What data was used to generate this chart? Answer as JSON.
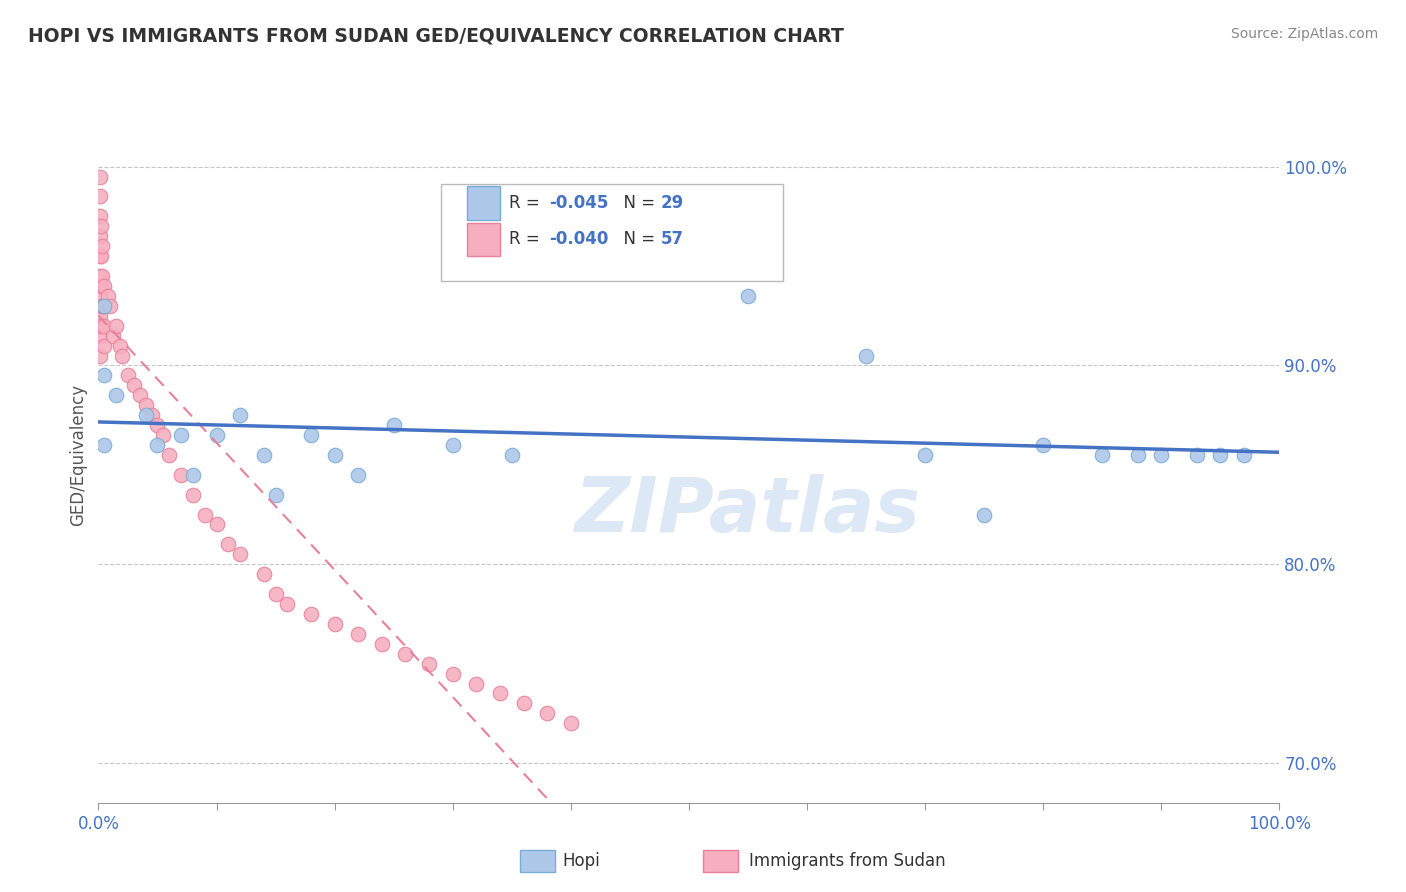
{
  "title": "HOPI VS IMMIGRANTS FROM SUDAN GED/EQUIVALENCY CORRELATION CHART",
  "source": "Source: ZipAtlas.com",
  "ylabel": "GED/Equivalency",
  "legend_R1": "-0.045",
  "legend_N1": "29",
  "legend_R2": "-0.040",
  "legend_N2": "57",
  "color_hopi": "#adc8e8",
  "color_hopi_edge": "#7aadd4",
  "color_sudan": "#f5afc0",
  "color_sudan_edge": "#e8809a",
  "color_hopi_trend": "#4472c4",
  "color_sudan_trend": "#e8809a",
  "background_color": "#ffffff",
  "watermark_color": "#dce8f5",
  "hopi_x": [
    0.5,
    0.5,
    0.5,
    1.5,
    4.0,
    5.0,
    7.0,
    8.0,
    10.0,
    12.0,
    14.0,
    15.0,
    18.0,
    20.0,
    22.0,
    25.0,
    30.0,
    35.0,
    55.0,
    65.0,
    70.0,
    75.0,
    80.0,
    85.0,
    88.0,
    90.0,
    93.0,
    95.0,
    97.0
  ],
  "hopi_y": [
    93.0,
    89.5,
    86.0,
    88.5,
    87.5,
    86.0,
    86.5,
    84.5,
    86.5,
    87.5,
    85.5,
    83.5,
    86.5,
    85.5,
    84.5,
    87.0,
    86.0,
    85.5,
    93.5,
    90.5,
    85.5,
    82.5,
    86.0,
    85.5,
    85.5,
    85.5,
    85.5,
    85.5,
    85.5
  ],
  "sudan_x": [
    0.1,
    0.1,
    0.1,
    0.1,
    0.1,
    0.1,
    0.1,
    0.1,
    0.1,
    0.1,
    0.2,
    0.2,
    0.2,
    0.2,
    0.2,
    0.3,
    0.3,
    0.3,
    0.5,
    0.5,
    0.5,
    0.5,
    0.8,
    1.0,
    1.2,
    1.5,
    1.8,
    2.0,
    2.5,
    3.0,
    3.5,
    4.0,
    4.5,
    5.0,
    5.5,
    6.0,
    7.0,
    8.0,
    9.0,
    10.0,
    11.0,
    12.0,
    14.0,
    15.0,
    16.0,
    18.0,
    20.0,
    22.0,
    24.0,
    26.0,
    28.0,
    30.0,
    32.0,
    34.0,
    36.0,
    38.0,
    40.0
  ],
  "sudan_y": [
    99.5,
    98.5,
    97.5,
    96.5,
    95.5,
    94.5,
    93.5,
    92.5,
    91.5,
    90.5,
    97.0,
    95.5,
    94.0,
    93.0,
    92.0,
    96.0,
    94.5,
    93.0,
    94.0,
    93.0,
    92.0,
    91.0,
    93.5,
    93.0,
    91.5,
    92.0,
    91.0,
    90.5,
    89.5,
    89.0,
    88.5,
    88.0,
    87.5,
    87.0,
    86.5,
    85.5,
    84.5,
    83.5,
    82.5,
    82.0,
    81.0,
    80.5,
    79.5,
    78.5,
    78.0,
    77.5,
    77.0,
    76.5,
    76.0,
    75.5,
    75.0,
    74.5,
    74.0,
    73.5,
    73.0,
    72.5,
    72.0
  ]
}
